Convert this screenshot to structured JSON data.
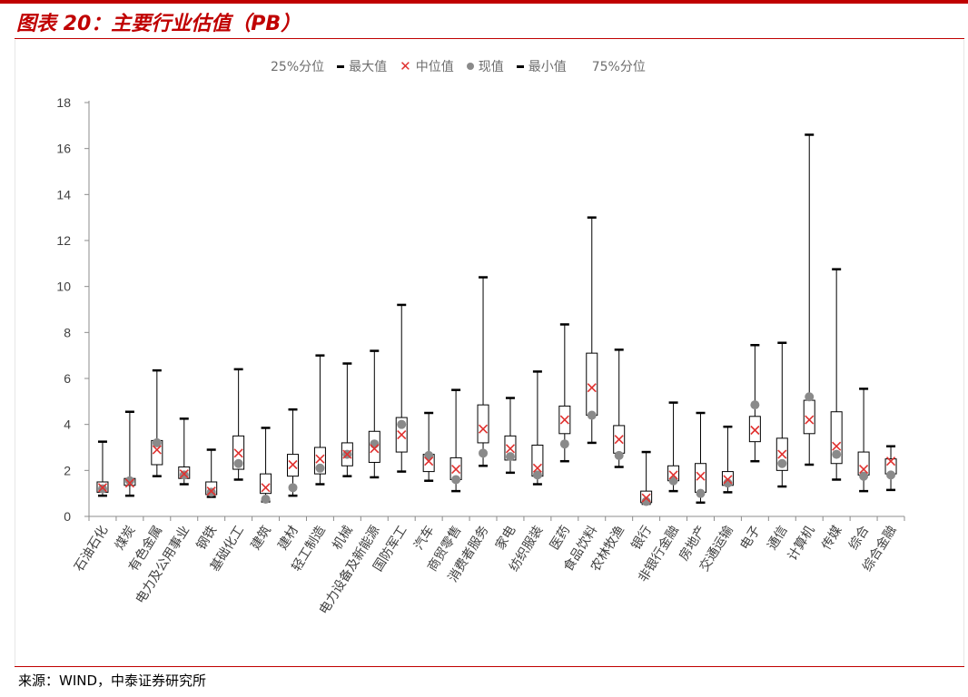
{
  "header": {
    "title": "图表 20：主要行业估值（PB）"
  },
  "footer": {
    "source": "来源：WIND，中泰证券研究所"
  },
  "legend": {
    "items": [
      {
        "label": "25%分位",
        "symbol": "none"
      },
      {
        "label": "最大值",
        "symbol": "dash"
      },
      {
        "label": "中位值",
        "symbol": "x"
      },
      {
        "label": "现值",
        "symbol": "dot"
      },
      {
        "label": "最小值",
        "symbol": "dash"
      },
      {
        "label": "75%分位",
        "symbol": "none"
      }
    ]
  },
  "colors": {
    "median": "#e0312f",
    "current": "#8a8a8a",
    "whisker": "#000000",
    "box": "#000000",
    "axis": "#8c8c8c",
    "accent": "#c00000"
  },
  "chart_data": {
    "type": "box",
    "ylim": [
      0,
      18
    ],
    "yticks": [
      0,
      2,
      4,
      6,
      8,
      10,
      12,
      14,
      16,
      18
    ],
    "xlabel": "",
    "ylabel": "",
    "categories": [
      "石油石化",
      "煤炭",
      "有色金属",
      "电力及公用事业",
      "钢铁",
      "基础化工",
      "建筑",
      "建材",
      "轻工制造",
      "机械",
      "电力设备及新能源",
      "国防军工",
      "汽车",
      "商贸零售",
      "消费者服务",
      "家电",
      "纺织服装",
      "医药",
      "食品饮料",
      "农林牧渔",
      "银行",
      "非银行金融",
      "房地产",
      "交通运输",
      "电子",
      "通信",
      "计算机",
      "传媒",
      "综合",
      "综合金融"
    ],
    "series": [
      {
        "name": "最大值",
        "values": [
          3.25,
          4.55,
          6.35,
          4.25,
          2.9,
          6.4,
          3.85,
          4.65,
          7.0,
          6.65,
          7.2,
          9.2,
          4.5,
          5.5,
          10.4,
          5.15,
          6.3,
          8.35,
          13.0,
          7.25,
          2.8,
          4.95,
          4.5,
          3.9,
          7.45,
          7.55,
          16.6,
          10.75,
          5.55,
          3.05
        ]
      },
      {
        "name": "75%分位",
        "values": [
          1.5,
          1.65,
          3.3,
          2.15,
          1.5,
          3.5,
          1.85,
          2.7,
          3.0,
          3.2,
          3.7,
          4.3,
          2.7,
          2.55,
          4.85,
          3.5,
          3.1,
          4.8,
          7.1,
          3.95,
          1.1,
          2.2,
          2.3,
          1.95,
          4.35,
          3.4,
          5.05,
          4.55,
          2.8,
          2.5
        ]
      },
      {
        "name": "中位值",
        "values": [
          1.25,
          1.45,
          2.9,
          1.85,
          1.1,
          2.75,
          1.25,
          2.25,
          2.5,
          2.7,
          2.95,
          3.55,
          2.4,
          2.05,
          3.8,
          2.95,
          2.1,
          4.2,
          5.6,
          3.35,
          0.8,
          1.8,
          1.75,
          1.6,
          3.75,
          2.7,
          4.2,
          3.05,
          2.05,
          2.4
        ]
      },
      {
        "name": "现值",
        "values": [
          1.2,
          1.55,
          3.2,
          1.8,
          1.05,
          2.3,
          0.75,
          1.25,
          2.1,
          2.7,
          3.15,
          4.0,
          2.65,
          1.6,
          2.75,
          2.6,
          1.8,
          3.15,
          4.4,
          2.65,
          0.65,
          1.55,
          1.0,
          1.45,
          4.85,
          2.3,
          5.2,
          2.7,
          1.75,
          1.8
        ]
      },
      {
        "name": "25%分位",
        "values": [
          1.05,
          1.35,
          2.25,
          1.65,
          0.95,
          2.05,
          1.0,
          1.75,
          1.85,
          2.2,
          2.35,
          2.8,
          1.95,
          1.6,
          3.2,
          2.45,
          1.75,
          3.6,
          4.4,
          2.75,
          0.6,
          1.55,
          1.05,
          1.35,
          3.25,
          2.0,
          3.6,
          2.3,
          1.8,
          1.85
        ]
      },
      {
        "name": "最小值",
        "values": [
          0.9,
          0.9,
          1.75,
          1.4,
          0.85,
          1.6,
          0.65,
          0.9,
          1.4,
          1.75,
          1.7,
          1.95,
          1.55,
          1.1,
          2.2,
          1.9,
          1.4,
          2.4,
          3.2,
          2.15,
          0.55,
          1.1,
          0.6,
          1.05,
          2.4,
          1.3,
          2.25,
          1.6,
          1.1,
          1.15
        ]
      }
    ]
  }
}
